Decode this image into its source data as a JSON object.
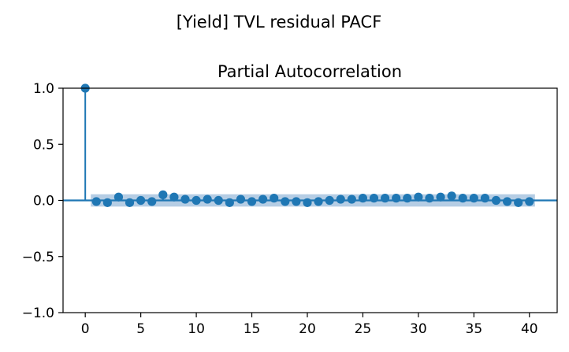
{
  "suptitle": "[Yield] TVL residual PACF",
  "chart_data": {
    "type": "stem",
    "title": "Partial Autocorrelation",
    "xlabel": "",
    "ylabel": "",
    "xlim": [
      -2,
      42.5
    ],
    "ylim": [
      -1.0,
      1.0
    ],
    "xticks": [
      0,
      5,
      10,
      15,
      20,
      25,
      30,
      35,
      40
    ],
    "yticks": [
      1.0,
      0.5,
      0.0,
      -0.5,
      -1.0
    ],
    "ytick_labels": [
      "1.0",
      "0.5",
      "0.0",
      "−0.5",
      "−1.0"
    ],
    "x": [
      0,
      1,
      2,
      3,
      4,
      5,
      6,
      7,
      8,
      9,
      10,
      11,
      12,
      13,
      14,
      15,
      16,
      17,
      18,
      19,
      20,
      21,
      22,
      23,
      24,
      25,
      26,
      27,
      28,
      29,
      30,
      31,
      32,
      33,
      34,
      35,
      36,
      37,
      38,
      39,
      40
    ],
    "values": [
      1.0,
      -0.01,
      -0.02,
      0.03,
      -0.02,
      0.0,
      -0.01,
      0.05,
      0.03,
      0.01,
      0.0,
      0.01,
      0.0,
      -0.02,
      0.01,
      -0.01,
      0.01,
      0.02,
      -0.01,
      -0.01,
      -0.02,
      -0.01,
      0.0,
      0.01,
      0.01,
      0.02,
      0.02,
      0.02,
      0.02,
      0.02,
      0.03,
      0.02,
      0.03,
      0.04,
      0.02,
      0.02,
      0.02,
      0.0,
      -0.01,
      -0.02,
      -0.01
    ],
    "confidence_band": {
      "x_start": 0.5,
      "x_end": 40.5,
      "upper": 0.055,
      "lower": -0.055
    },
    "colors": {
      "marker": "#1f77b4",
      "band": "#b5cde4",
      "axis": "#000000"
    },
    "grid": false
  }
}
